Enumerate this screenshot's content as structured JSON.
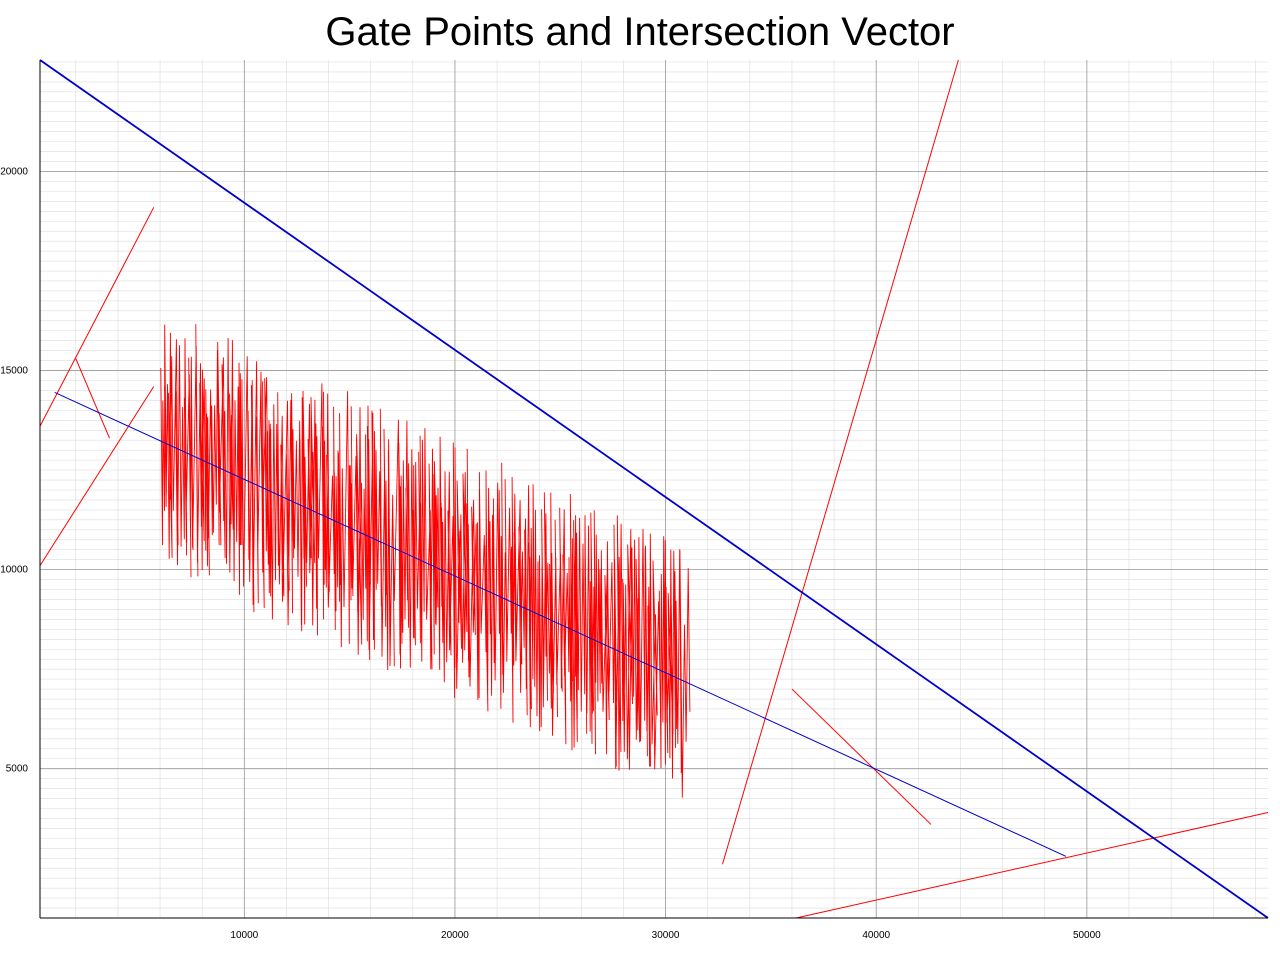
{
  "chart_data": {
    "type": "line",
    "title": "Gate Points and Intersection Vector",
    "xlabel": "",
    "ylabel": "",
    "xlim": [
      300,
      58600
    ],
    "ylim": [
      1250,
      22800
    ],
    "x_ticks": [
      10000,
      20000,
      30000,
      40000,
      50000
    ],
    "y_ticks": [
      5000,
      10000,
      15000,
      20000
    ],
    "grid": true,
    "colors": {
      "gates": "#ff0000",
      "vector": "#0000cc",
      "grid_major": "#9a9a9a",
      "grid_minor": "#dcdcdc"
    },
    "vector_lines": [
      {
        "x": [
          300,
          58600
        ],
        "y": [
          22800,
          1250
        ],
        "width": 1.8
      },
      {
        "x": [
          1000,
          49000
        ],
        "y": [
          14450,
          2800
        ],
        "width": 1
      }
    ],
    "gate_segments": [
      {
        "x": [
          300,
          5700
        ],
        "y": [
          13600,
          19100
        ]
      },
      {
        "x": [
          300,
          5700
        ],
        "y": [
          10100,
          14600
        ]
      },
      {
        "x": [
          2000,
          3600
        ],
        "y": [
          15300,
          13300
        ]
      },
      {
        "x": [
          32700,
          43900
        ],
        "y": [
          2600,
          22800
        ]
      },
      {
        "x": [
          36000,
          42600
        ],
        "y": [
          7000,
          3600
        ]
      },
      {
        "x": [
          36200,
          58600
        ],
        "y": [
          1250,
          3900
        ]
      }
    ],
    "scribble_band": {
      "x_start": 6000,
      "x_end": 31000,
      "count": 300,
      "top_start": 16600,
      "top_end": 10600,
      "bottom_start": 9900,
      "bottom_end": 4200
    }
  }
}
